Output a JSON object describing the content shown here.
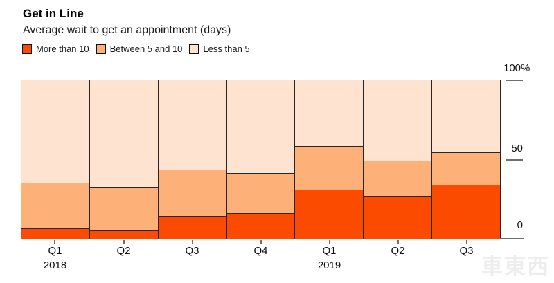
{
  "header": {
    "title": "Get in Line",
    "subtitle": "Average wait to get an appointment (days)"
  },
  "legend": [
    {
      "label": "More than 10",
      "color": "#fa4b00"
    },
    {
      "label": "Between 5 and 10",
      "color": "#fdb179"
    },
    {
      "label": "Less than 5",
      "color": "#fde3d0"
    }
  ],
  "chart_data": {
    "type": "bar",
    "stacked": true,
    "percent": true,
    "title": "Get in Line",
    "subtitle": "Average wait to get an appointment (days)",
    "categories": [
      {
        "label": "Q1",
        "year": "2018"
      },
      {
        "label": "Q2"
      },
      {
        "label": "Q3"
      },
      {
        "label": "Q4"
      },
      {
        "label": "Q1",
        "year": "2019"
      },
      {
        "label": "Q2"
      },
      {
        "label": "Q3"
      }
    ],
    "series": [
      {
        "name": "More than 10",
        "color": "#fa4b00",
        "values": [
          6,
          5,
          14,
          16,
          31,
          27,
          34
        ]
      },
      {
        "name": "Between 5 and 10",
        "color": "#fdb179",
        "values": [
          29,
          27,
          29,
          25,
          27,
          22,
          20
        ]
      },
      {
        "name": "Less than 5",
        "color": "#fde3d0",
        "values": [
          65,
          68,
          57,
          59,
          42,
          51,
          46
        ]
      }
    ],
    "ylim": [
      0,
      100
    ],
    "y_ticks": [
      "100%",
      "50",
      "0"
    ],
    "legend_position": "top",
    "grid": false,
    "bar_outline": "#262626"
  },
  "watermark": "車東西"
}
